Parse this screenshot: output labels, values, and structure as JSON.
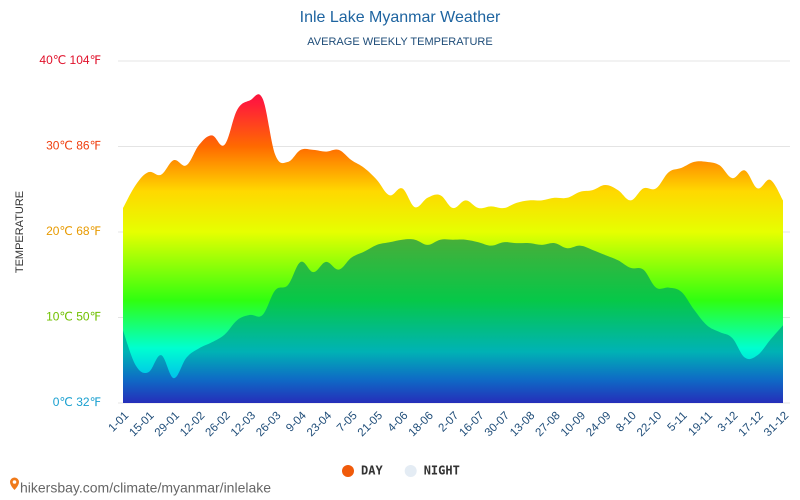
{
  "chart_data": {
    "type": "area",
    "title": "Inle Lake Myanmar Weather",
    "subtitle": "AVERAGE WEEKLY TEMPERATURE",
    "y_label": "TEMPERATURE",
    "source": "hikersbay.com/climate/myanmar/inlelake",
    "categories": [
      "1-01",
      null,
      "15-01",
      null,
      "29-01",
      null,
      "12-02",
      null,
      "26-02",
      null,
      "12-03",
      null,
      "26-03",
      null,
      "9-04",
      null,
      "23-04",
      null,
      "7-05",
      null,
      "21-05",
      null,
      "4-06",
      null,
      "18-06",
      null,
      "2-07",
      null,
      "16-07",
      null,
      "30-07",
      null,
      "13-08",
      null,
      "27-08",
      null,
      "10-09",
      null,
      "24-09",
      null,
      "8-10",
      null,
      "22-10",
      null,
      "5-11",
      null,
      "19-11",
      null,
      "3-12",
      null,
      "17-12",
      null,
      "31-12"
    ],
    "series": [
      {
        "name": "DAY",
        "color": "#f05a0a",
        "values": [
          22.8,
          25.5,
          27,
          26.7,
          28.4,
          27.8,
          30.2,
          31.3,
          30.2,
          34.3,
          35.4,
          35.6,
          29,
          28.2,
          29.6,
          29.6,
          29.4,
          29.6,
          28.4,
          27.5,
          26.1,
          24.3,
          25.1,
          22.9,
          24,
          24.3,
          22.8,
          23.7,
          22.8,
          23,
          22.8,
          23.4,
          23.7,
          23.7,
          24,
          24,
          24.7,
          24.9,
          25.5,
          24.9,
          23.7,
          25.1,
          25.1,
          27,
          27.5,
          28.2,
          28.2,
          27.8,
          26.3,
          27.2,
          25.1,
          26.1,
          23.7
        ]
      },
      {
        "name": "NIGHT",
        "color": "#e4ecf4",
        "values": [
          8.5,
          4.4,
          3.6,
          5.6,
          2.9,
          5.3,
          6.4,
          7.1,
          8,
          9.7,
          10.3,
          10.3,
          13.2,
          13.8,
          16.5,
          15.3,
          16.5,
          15.6,
          17,
          17.7,
          18.5,
          18.8,
          19.1,
          19.1,
          18.5,
          19.1,
          19.1,
          19.1,
          18.8,
          18.4,
          18.8,
          18.7,
          18.7,
          18.5,
          18.7,
          18.1,
          18.4,
          17.9,
          17.3,
          16.7,
          15.8,
          15.6,
          13.5,
          13.5,
          13,
          10.9,
          9.1,
          8.3,
          7.6,
          5.3,
          5.6,
          7.4,
          9.1
        ]
      }
    ],
    "ylim": [
      0,
      40
    ],
    "yticks": [
      {
        "value": 0,
        "label": "0℃ 32℉"
      },
      {
        "value": 10,
        "label": "10℃ 50℉"
      },
      {
        "value": 20,
        "label": "20℃ 68℉"
      },
      {
        "value": 30,
        "label": "30℃ 86℉"
      },
      {
        "value": 40,
        "label": "40℃ 104℉"
      }
    ],
    "grid": true,
    "legend": "bottom"
  }
}
